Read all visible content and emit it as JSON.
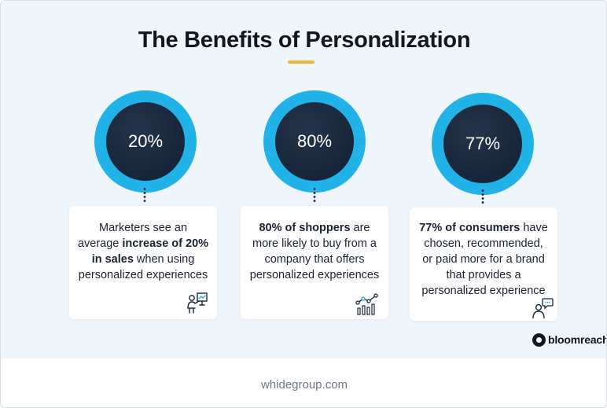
{
  "title": "The Benefits of Personalization",
  "colors": {
    "accent_underline": "#f4b52a",
    "outer_circle": "#21b2e8",
    "inner_circle": "#17253a",
    "panel_background": "#eef5fb"
  },
  "stats": [
    {
      "value": "20%",
      "text_parts": [
        {
          "t": "Marketers see an average ",
          "bold": false
        },
        {
          "t": "increase of 20% in sales",
          "bold": true
        },
        {
          "t": " when using personalized experiences",
          "bold": false
        }
      ],
      "icon": "presentation-person-icon"
    },
    {
      "value": "80%",
      "text_parts": [
        {
          "t": "80% of shoppers",
          "bold": true
        },
        {
          "t": " are more likely to buy from a company that offers personalized experiences",
          "bold": false
        }
      ],
      "icon": "bar-line-chart-icon"
    },
    {
      "value": "77%",
      "text_parts": [
        {
          "t": "77% of consumers",
          "bold": true
        },
        {
          "t": " have chosen, recommended, or paid more for a brand that provides a personalized experience",
          "bold": false
        }
      ],
      "icon": "person-speech-bubble-icon"
    }
  ],
  "brand": {
    "logo_text": "bloomreach",
    "logo_icon": "bloomreach-logo-icon"
  },
  "footer": "whidegroup.com"
}
